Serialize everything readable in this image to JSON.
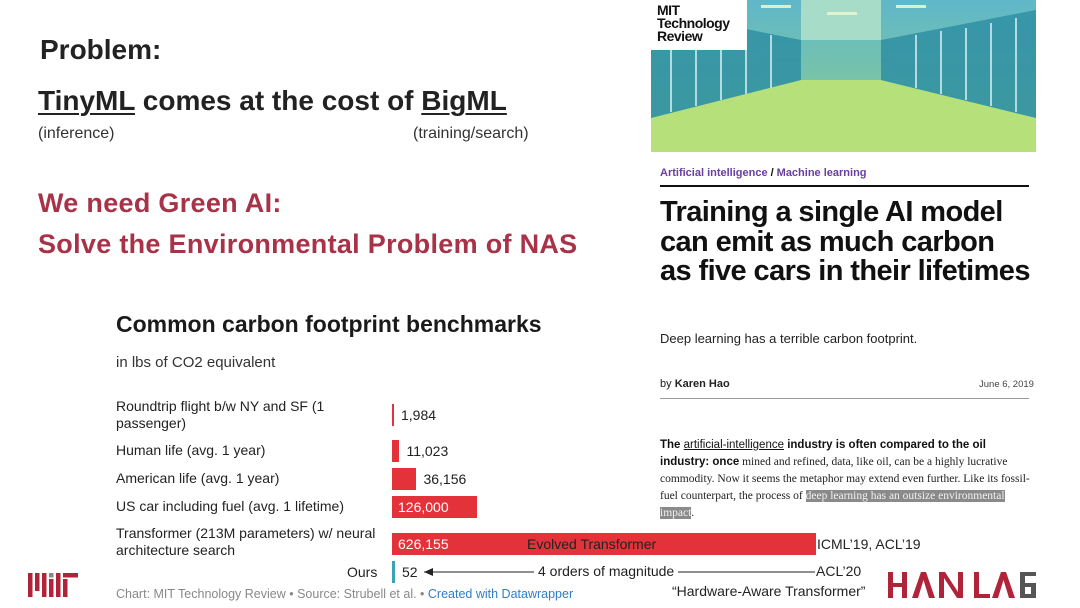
{
  "slide": {
    "heading": "Problem:",
    "cost_line": {
      "tinyml": "TinyML",
      "middle": " comes at the cost of ",
      "bigml": "BigML"
    },
    "inference_note": "(inference)",
    "training_note": "(training/search)",
    "green_line_1": "We need Green AI:",
    "green_line_2": "Solve the Environmental Problem of NAS"
  },
  "chart": {
    "title": "Common carbon footprint benchmarks",
    "subtitle": "in lbs of CO2 equivalent",
    "source": "Chart: MIT Technology Review • Source: Strubell et al. • ",
    "source_link": "Created with Datawrapper",
    "ours_label": "Ours"
  },
  "chart_data": {
    "type": "bar",
    "orientation": "horizontal",
    "title": "Common carbon footprint benchmarks",
    "subtitle": "in lbs of CO2 equivalent",
    "categories": [
      "Roundtrip flight b/w NY and SF (1 passenger)",
      "Human life (avg. 1 year)",
      "American life (avg. 1 year)",
      "US car including fuel (avg. 1 lifetime)",
      "Transformer (213M parameters) w/ neural architecture search",
      "Ours"
    ],
    "values": [
      1984,
      11023,
      36156,
      126000,
      626155,
      52
    ],
    "labels": [
      "1,984",
      "11,023",
      "36,156",
      "126,000",
      "626,155",
      "52"
    ],
    "xlim": [
      0,
      626155
    ],
    "colors": {
      "default": "#e4323b",
      "ours": "#3aa3b5"
    },
    "annotations": {
      "evolved": "Evolved Transformer",
      "icml": "ICML’19, ACL’19",
      "magnitude": "4 orders of magnitude",
      "acl20": "ACL’20",
      "hat": "“Hardware-Aware Transformer”"
    }
  },
  "article": {
    "logo": [
      "MIT",
      "Technology",
      "Review"
    ],
    "category_1": "Artificial intelligence",
    "category_sep": "/",
    "category_2": "Machine learning",
    "headline": "Training a single AI model can emit as much carbon as five cars in their lifetimes",
    "dek": "Deep learning has a terrible carbon footprint.",
    "byline_prefix": "by ",
    "author": "Karen Hao",
    "date": "June 6, 2019",
    "body_lead_1": "The ",
    "body_link": "artificial-intelligence",
    "body_lead_2": " industry is often compared to the oil industry: once",
    "body_text": " mined and refined, data, like oil, can be a highly lucrative commodity. Now it seems the metaphor may extend even further. Like its fossil-fuel counterpart, the process of ",
    "body_highlight": "deep learning has an outsize environmental impact",
    "body_end": "."
  },
  "logos": {
    "mit": "MIT",
    "hanlab": "HAN LAB"
  },
  "colors": {
    "accent": "#a83248",
    "bar": "#e4323b",
    "ours": "#3aa3b5",
    "category": "#6a3ea1"
  }
}
